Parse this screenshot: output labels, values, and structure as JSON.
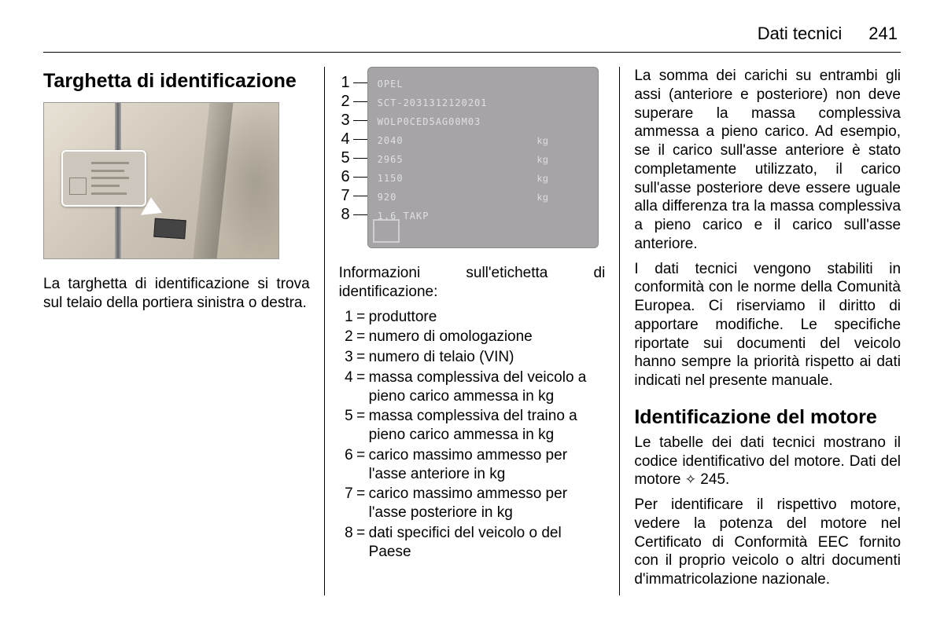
{
  "header": {
    "section": "Dati tecnici",
    "page": "241"
  },
  "col1": {
    "heading": "Targhetta di identificazione",
    "body": "La targhetta di identificazione si trova sul telaio della portiera sinistra o destra."
  },
  "col2": {
    "plate": {
      "rows": [
        {
          "v": "OPEL",
          "kg": ""
        },
        {
          "v": "SCT-2031312120201",
          "kg": ""
        },
        {
          "v": "WOLP0CED5AG00M03",
          "kg": ""
        },
        {
          "v": "2040",
          "kg": "kg"
        },
        {
          "v": "2965",
          "kg": "kg"
        },
        {
          "v": "1150",
          "kg": "kg"
        },
        {
          "v": "920",
          "kg": "kg"
        },
        {
          "v": "1.6  TAKP",
          "kg": ""
        }
      ]
    },
    "intro": "Informazioni sull'etichetta di identificazione:",
    "legend": [
      {
        "n": "1",
        "t": "produttore"
      },
      {
        "n": "2",
        "t": "numero di omologazione"
      },
      {
        "n": "3",
        "t": "numero di telaio (VIN)"
      },
      {
        "n": "4",
        "t": "massa complessiva del veicolo a pieno carico ammessa in kg"
      },
      {
        "n": "5",
        "t": "massa complessiva del traino a pieno carico ammessa in kg"
      },
      {
        "n": "6",
        "t": "carico massimo ammesso per l'asse anteriore in kg"
      },
      {
        "n": "7",
        "t": "carico massimo ammesso per l'asse posteriore in kg"
      },
      {
        "n": "8",
        "t": "dati specifici del veicolo o del Paese"
      }
    ]
  },
  "col3": {
    "p1": "La somma dei carichi su entrambi gli assi (anteriore e posteriore) non deve superare la massa complessiva ammessa a pieno carico. Ad esempio, se il carico sull'asse anteriore è stato completamente utilizzato, il carico sull'asse posteriore deve essere uguale alla differenza tra la massa complessiva a pieno carico e il carico sull'asse anteriore.",
    "p2": "I dati tecnici vengono stabiliti in conformità con le norme della Comunità Europea. Ci riserviamo il diritto di apportare modifiche. Le specifiche riportate sui documenti del veicolo hanno sempre la priorità rispetto ai dati indicati nel presente manuale.",
    "heading2": "Identificazione del motore",
    "p3a": "Le tabelle dei dati tecnici mostrano il codice identificativo del motore. Dati del motore ",
    "p3ref": "245",
    "p4": "Per identificare il rispettivo motore, vedere la potenza del motore nel Certificato di Conformità EEC fornito con il proprio veicolo o altri documenti d'immatricolazione nazionale."
  }
}
